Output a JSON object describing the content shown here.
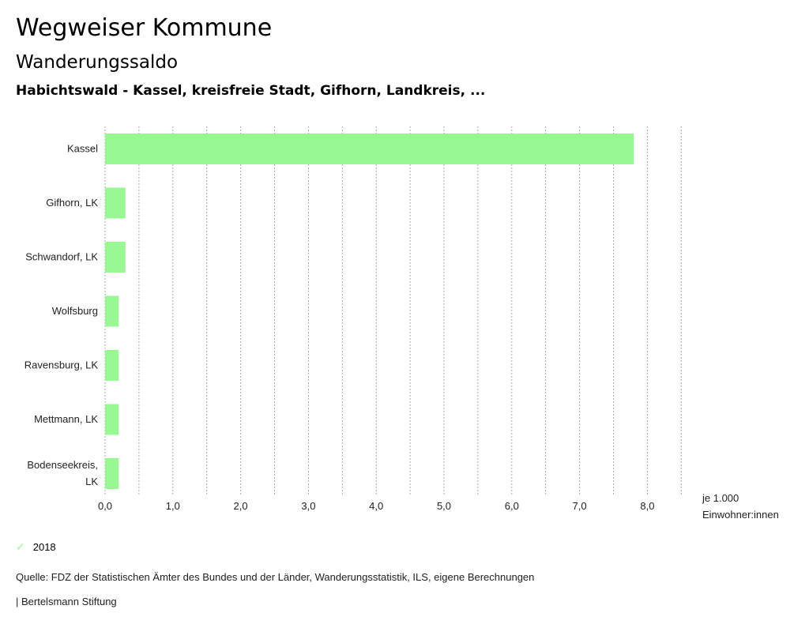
{
  "header": {
    "title": "Wegweiser Kommune",
    "subtitle": "Wanderungssaldo",
    "context": "Habichtswald - Kassel, kreisfreie Stadt, Gifhorn, Landkreis, ..."
  },
  "chart_data": {
    "type": "bar",
    "orientation": "horizontal",
    "categories": [
      [
        "Kassel"
      ],
      [
        "Gifhorn, LK"
      ],
      [
        "Schwandorf, LK"
      ],
      [
        "Wolfsburg"
      ],
      [
        "Ravensburg, LK"
      ],
      [
        "Mettmann, LK"
      ],
      [
        "Bodenseekreis,",
        "LK"
      ]
    ],
    "series": [
      {
        "name": "2018",
        "values": [
          7.8,
          0.3,
          0.3,
          0.2,
          0.2,
          0.2,
          0.2
        ],
        "color": "#98f993"
      }
    ],
    "xlim": [
      0,
      8.5
    ],
    "xticks": [
      "0,0",
      "1,0",
      "2,0",
      "3,0",
      "4,0",
      "5,0",
      "6,0",
      "7,0",
      "8,0"
    ],
    "xlabel": [
      "je 1.000",
      "Einwohner:innen"
    ],
    "grid": true,
    "legend_position": "bottom-left"
  },
  "legend": {
    "label": "2018"
  },
  "footer": {
    "source": "Quelle: FDZ der Statistischen Ämter des Bundes und der Länder, Wanderungsstatistik, ILS, eigene Berechnungen",
    "brand": "| Bertelsmann Stiftung"
  }
}
